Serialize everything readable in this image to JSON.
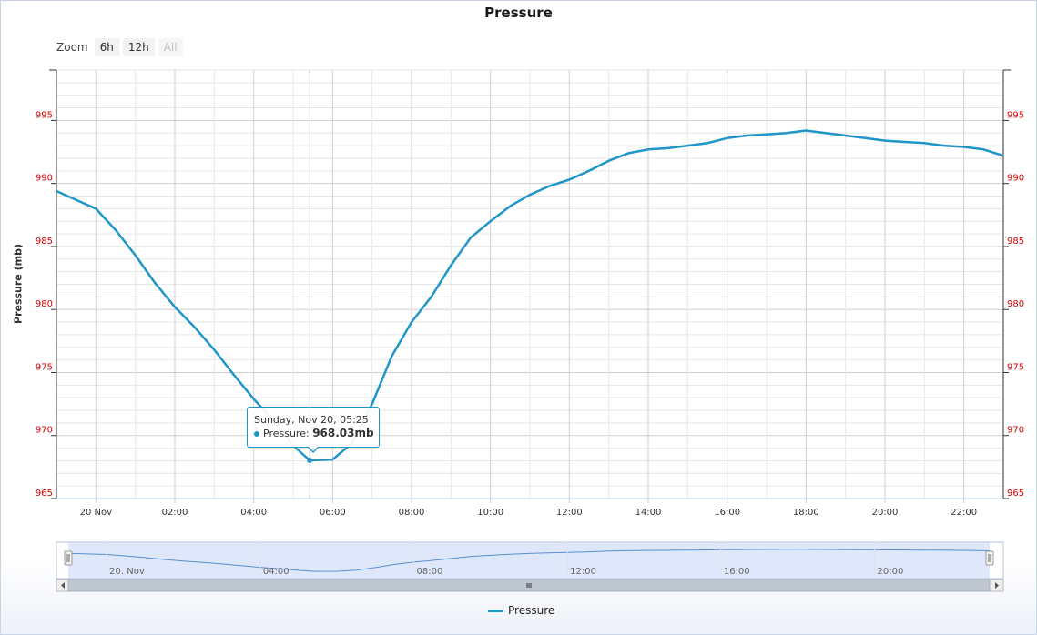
{
  "chart": {
    "title": "Pressure",
    "ylabel": "Pressure (mb)",
    "zoom_label": "Zoom",
    "zoom_buttons": [
      {
        "label": "6h",
        "enabled": true
      },
      {
        "label": "12h",
        "enabled": true
      },
      {
        "label": "All",
        "enabled": false
      }
    ],
    "legend_label": "Pressure",
    "tooltip": {
      "header": "Sunday, Nov 20, 05:25",
      "series": "Pressure:",
      "value": "968.03mb"
    },
    "navigator_x_labels": [
      "20. Nov",
      "04:00",
      "08:00",
      "12:00",
      "16:00",
      "20:00"
    ],
    "colors": {
      "line": "#1f95c8",
      "tick_labels": "#dd0000",
      "grid": "#d8d8d8",
      "navigator_mask": "#c5d5f5"
    }
  },
  "chart_data": {
    "type": "line",
    "title": "Pressure",
    "ylabel": "Pressure (mb)",
    "ylim": [
      965,
      999
    ],
    "yticks": [
      965,
      970,
      975,
      980,
      985,
      990,
      995
    ],
    "xlim": [
      "Nov 20 00:00",
      "Nov 20 23:00"
    ],
    "xticks": [
      "20 Nov",
      "02:00",
      "04:00",
      "06:00",
      "08:00",
      "10:00",
      "12:00",
      "14:00",
      "16:00",
      "18:00",
      "20:00",
      "22:00"
    ],
    "grid": true,
    "legend": "bottom-center",
    "series": [
      {
        "name": "Pressure",
        "x": [
          "23:00 (Nov 19)",
          "00:00",
          "00:30",
          "01:00",
          "01:30",
          "02:00",
          "02:30",
          "03:00",
          "03:30",
          "04:00",
          "04:30",
          "05:00",
          "05:25",
          "06:00",
          "06:30",
          "07:00",
          "07:30",
          "08:00",
          "08:30",
          "09:00",
          "09:30",
          "10:00",
          "10:30",
          "11:00",
          "11:30",
          "12:00",
          "12:30",
          "13:00",
          "13:30",
          "14:00",
          "14:30",
          "15:00",
          "15:30",
          "16:00",
          "16:30",
          "17:00",
          "17:30",
          "18:00",
          "18:30",
          "19:00",
          "19:30",
          "20:00",
          "20:30",
          "21:00",
          "21:30",
          "22:00",
          "22:30",
          "23:00"
        ],
        "hours": [
          -1.0,
          0.0,
          0.5,
          1.0,
          1.5,
          2.0,
          2.5,
          3.0,
          3.5,
          4.0,
          4.5,
          5.0,
          5.42,
          6.0,
          6.5,
          7.0,
          7.5,
          8.0,
          8.5,
          9.0,
          9.5,
          10.0,
          10.5,
          11.0,
          11.5,
          12.0,
          12.5,
          13.0,
          13.5,
          14.0,
          14.5,
          15.0,
          15.5,
          16.0,
          16.5,
          17.0,
          17.5,
          18.0,
          18.5,
          19.0,
          19.5,
          20.0,
          20.5,
          21.0,
          21.5,
          22.0,
          22.5,
          23.0
        ],
        "values": [
          989.4,
          988.0,
          986.3,
          984.3,
          982.1,
          980.2,
          978.6,
          976.8,
          974.8,
          972.9,
          971.2,
          969.2,
          968.03,
          968.1,
          969.4,
          972.5,
          976.3,
          979.0,
          981.0,
          983.5,
          985.7,
          987.0,
          988.2,
          989.1,
          989.8,
          990.3,
          991.0,
          991.8,
          992.4,
          992.7,
          992.8,
          993.0,
          993.2,
          993.6,
          993.8,
          993.9,
          994.0,
          994.2,
          994.0,
          993.8,
          993.6,
          993.4,
          993.3,
          993.2,
          993.0,
          992.9,
          992.7,
          992.2
        ]
      }
    ]
  }
}
